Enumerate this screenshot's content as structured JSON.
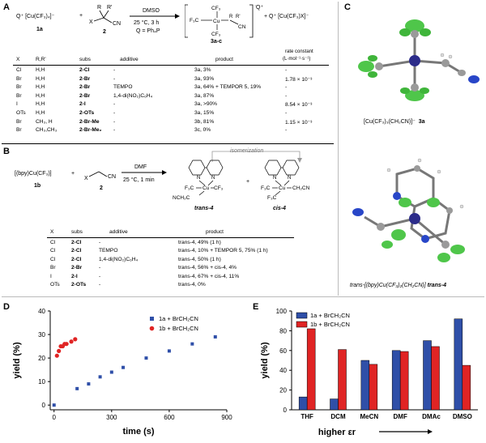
{
  "panels": {
    "A": "A",
    "B": "B",
    "C": "C",
    "D": "D",
    "E": "E"
  },
  "panel_a": {
    "reactant1": "Q⁺ [Cu(CF₃)₄]⁻",
    "reactant1_label": "1a",
    "plus": "+",
    "reactant2_label": "2",
    "reagent_top": "DMSO",
    "conditions": "25 °C, 3 h",
    "q_def": "Q = Ph₄P",
    "product_label": "3a-c",
    "byproduct": "+ Q⁺ [Cu(CF₃)X]⁻",
    "headers": {
      "x": "X",
      "rr": "R,R'",
      "subs": "subs",
      "additive": "additive",
      "product": "product",
      "rate": "rate constant",
      "rate_units": "(L·mol⁻¹·s⁻¹)"
    },
    "rows": [
      {
        "x": "Cl",
        "rr": "H,H",
        "subs": "2-Cl",
        "additive": "-",
        "product": "3a, 3%",
        "rate": "-"
      },
      {
        "x": "Br",
        "rr": "H,H",
        "subs": "2-Br",
        "additive": "-",
        "product": "3a, 93%",
        "rate": "1.78 × 10⁻³"
      },
      {
        "x": "Br",
        "rr": "H,H",
        "subs": "2-Br",
        "additive": "TEMPO",
        "product": "3a, 64% + TEMPOR 5, 19%",
        "rate": "-"
      },
      {
        "x": "Br",
        "rr": "H,H",
        "subs": "2-Br",
        "additive": "1,4-di(NO₂)C₆H₄",
        "product": "3a, 87%",
        "rate": "-"
      },
      {
        "x": "I",
        "rr": "H,H",
        "subs": "2-I",
        "additive": "-",
        "product": "3a, >90%",
        "rate": "8.54 × 10⁻³"
      },
      {
        "x": "OTs",
        "rr": "H,H",
        "subs": "2-OTs",
        "additive": "-",
        "product": "3a, 15%",
        "rate": "-"
      },
      {
        "x": "Br",
        "rr": "CH₃, H",
        "subs": "2-Br-Me",
        "additive": "-",
        "product": "3b, 81%",
        "rate": "1.15 × 10⁻³"
      },
      {
        "x": "Br",
        "rr": "CH₃,CH₃",
        "subs": "2-Br-Me₂",
        "additive": "-",
        "product": "3c, 0%",
        "rate": "-"
      }
    ]
  },
  "panel_b": {
    "reactant1": "[(bpy)Cu(CF₃)]",
    "reactant1_label": "1b",
    "plus": "+",
    "reactant2_label": "2",
    "reagent_top": "DMF",
    "conditions": "25 °C, 1 min",
    "isomerization": "isomerization",
    "product1_label": "trans-4",
    "product2_label": "cis-4",
    "headers": {
      "x": "X",
      "subs": "subs",
      "additive": "additive",
      "product": "product"
    },
    "rows": [
      {
        "x": "Cl",
        "subs": "2-Cl",
        "additive": "-",
        "product": "trans-4, 49% (1 h)"
      },
      {
        "x": "Cl",
        "subs": "2-Cl",
        "additive": "TEMPO",
        "product": "trans-4, 10% + TEMPOR 5, 75% (1 h)"
      },
      {
        "x": "Cl",
        "subs": "2-Cl",
        "additive": "1,4-di(NO₂)C₆H₄",
        "product": "trans-4, 50% (1 h)"
      },
      {
        "x": "Br",
        "subs": "2-Br",
        "additive": "-",
        "product": "trans-4, 56% + cis-4, 4%"
      },
      {
        "x": "I",
        "subs": "2-I",
        "additive": "-",
        "product": "trans-4, 67% + cis-4, 11%"
      },
      {
        "x": "OTs",
        "subs": "2-OTs",
        "additive": "-",
        "product": "trans-4, 0%"
      }
    ]
  },
  "panel_c": {
    "caption1": "[Cu(CF₃)₃(CH₂CN)]⁻",
    "caption1_label": "3a",
    "caption2": "trans-[(bpy)Cu(CF₃)₂(CH₂CN)]",
    "caption2_label": "trans-4"
  },
  "colors": {
    "blue": "#2f4fa8",
    "red": "#e02424"
  },
  "chart_data": [
    {
      "type": "scatter",
      "title": "",
      "xlabel": "time (s)",
      "ylabel": "yield (%)",
      "xlim": [
        -20,
        900
      ],
      "ylim": [
        -2,
        40
      ],
      "xticks": [
        0,
        300,
        600,
        900
      ],
      "yticks": [
        0,
        10,
        20,
        30,
        40
      ],
      "legend_position": "top-right",
      "series": [
        {
          "name": "1a + BrCH₂CN",
          "color": "#2f4fa8",
          "marker": "square",
          "x": [
            0,
            120,
            180,
            240,
            300,
            360,
            480,
            600,
            720,
            840
          ],
          "y": [
            0,
            7,
            9,
            12,
            14,
            16,
            20,
            23,
            26,
            29
          ]
        },
        {
          "name": "1b + BrCH₂CN",
          "color": "#e02424",
          "marker": "circle",
          "x": [
            15,
            25,
            35,
            45,
            55,
            65,
            90,
            110
          ],
          "y": [
            21,
            23,
            25,
            25,
            26,
            26,
            27,
            28
          ]
        }
      ]
    },
    {
      "type": "bar",
      "title": "",
      "xlabel": "higher εr",
      "ylabel": "yield (%)",
      "ylim": [
        0,
        100
      ],
      "yticks": [
        0,
        20,
        40,
        60,
        80,
        100
      ],
      "legend_position": "top-left",
      "categories": [
        "THF",
        "DCM",
        "MeCN",
        "DMF",
        "DMAc",
        "DMSO"
      ],
      "series": [
        {
          "name": "1a + BrCH₂CN",
          "color": "#2f4fa8",
          "values": [
            13,
            11,
            50,
            60,
            70,
            92
          ]
        },
        {
          "name": "1b + BrCH₂CN",
          "color": "#e02424",
          "values": [
            82,
            61,
            46,
            59,
            64,
            45
          ]
        }
      ]
    }
  ]
}
